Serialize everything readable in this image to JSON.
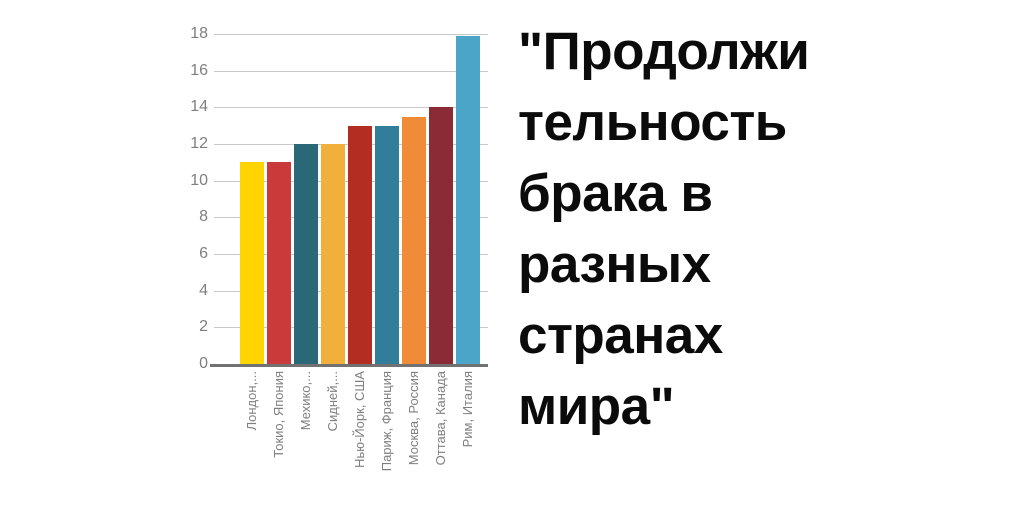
{
  "page": {
    "background": "#FFFFFF"
  },
  "title": {
    "lines": [
      "\"Продолжи",
      "тельность",
      "брака в",
      "разных",
      "странах",
      "мира\""
    ],
    "full_text": "\"Продолжительность брака в разных странах мира\"",
    "color": "#0B0B0B"
  },
  "chart_data": {
    "type": "bar",
    "title": "Продолжительность брака в разных странах мира",
    "categories": [
      "Лондон,...",
      "Токио, Япония",
      "Мехико,...",
      "Сидней,...",
      "Нью-Йорк, США",
      "Париж, Франция",
      "Москва, Россия",
      "Оттава, Канада",
      "Рим, Италия"
    ],
    "values": [
      11,
      11,
      12,
      12,
      13,
      13,
      13.5,
      14,
      17.9
    ],
    "bar_colors": [
      "#FFD400",
      "#CB3A3A",
      "#2B6877",
      "#F1AF3B",
      "#B32D22",
      "#327D99",
      "#F08C38",
      "#8A2B35",
      "#4AA5C9"
    ],
    "xlabel": "",
    "ylabel": "",
    "ylim": [
      0,
      18
    ],
    "yticks": [
      18,
      16,
      14,
      12,
      10,
      8,
      6,
      4,
      2,
      0
    ],
    "grid": true,
    "legend": false,
    "gridline_color": "#C9C9C9",
    "axis_line_color": "#717171",
    "tick_label_color": "#7F7F7F"
  }
}
